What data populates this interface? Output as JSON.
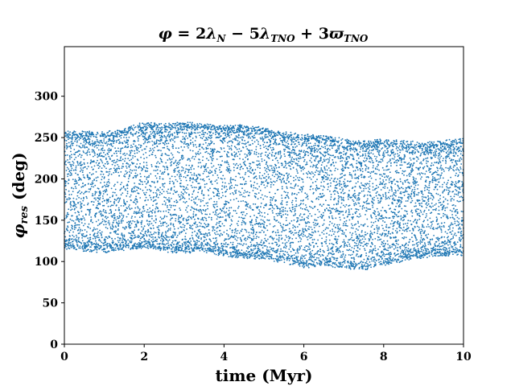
{
  "chart_data": {
    "type": "scatter",
    "title": "φ = 2λN − 5λTNO + 3ϖTNO",
    "title_parts": {
      "phi": "φ",
      "eq": " = 2",
      "lambda1": "λ",
      "sub1": "N",
      "minus": " − 5",
      "lambda2": "λ",
      "sub2": "TNO",
      "plus": " + 3",
      "varpi": "ϖ",
      "sub3": "TNO"
    },
    "xlabel": "time (Myr)",
    "ylabel_main": "φ",
    "ylabel_sub": "res",
    "ylabel_unit": " (deg)",
    "xlim": [
      0,
      10
    ],
    "ylim": [
      0,
      360
    ],
    "x_ticks": [
      0,
      2,
      4,
      6,
      8,
      10
    ],
    "y_ticks": [
      0,
      50,
      100,
      150,
      200,
      250,
      300
    ],
    "grid": false,
    "marker_color": "#1f77b4",
    "series": [
      {
        "description_points": "upper envelope",
        "x": [
          0,
          0.5,
          1,
          1.5,
          2,
          2.5,
          3,
          3.5,
          4,
          4.5,
          5,
          5.5,
          6,
          6.5,
          7,
          7.5,
          8,
          8.5,
          9,
          9.5,
          10
        ],
        "y": [
          256,
          255,
          254,
          259,
          266,
          264,
          267,
          265,
          262,
          263,
          260,
          254,
          252,
          250,
          246,
          243,
          246,
          245,
          241,
          244,
          246
        ]
      },
      {
        "x": [
          0,
          0.5,
          1,
          1.5,
          2,
          2.5,
          3,
          3.5,
          4,
          4.5,
          5,
          5.5,
          6,
          6.5,
          7,
          7.5,
          8,
          8.5,
          9,
          9.5,
          10
        ],
        "y": [
          117,
          115,
          113,
          116,
          119,
          114,
          113,
          114,
          109,
          106,
          105,
          101,
          95,
          97,
          94,
          92,
          98,
          103,
          107,
          108,
          110
        ]
      }
    ]
  }
}
